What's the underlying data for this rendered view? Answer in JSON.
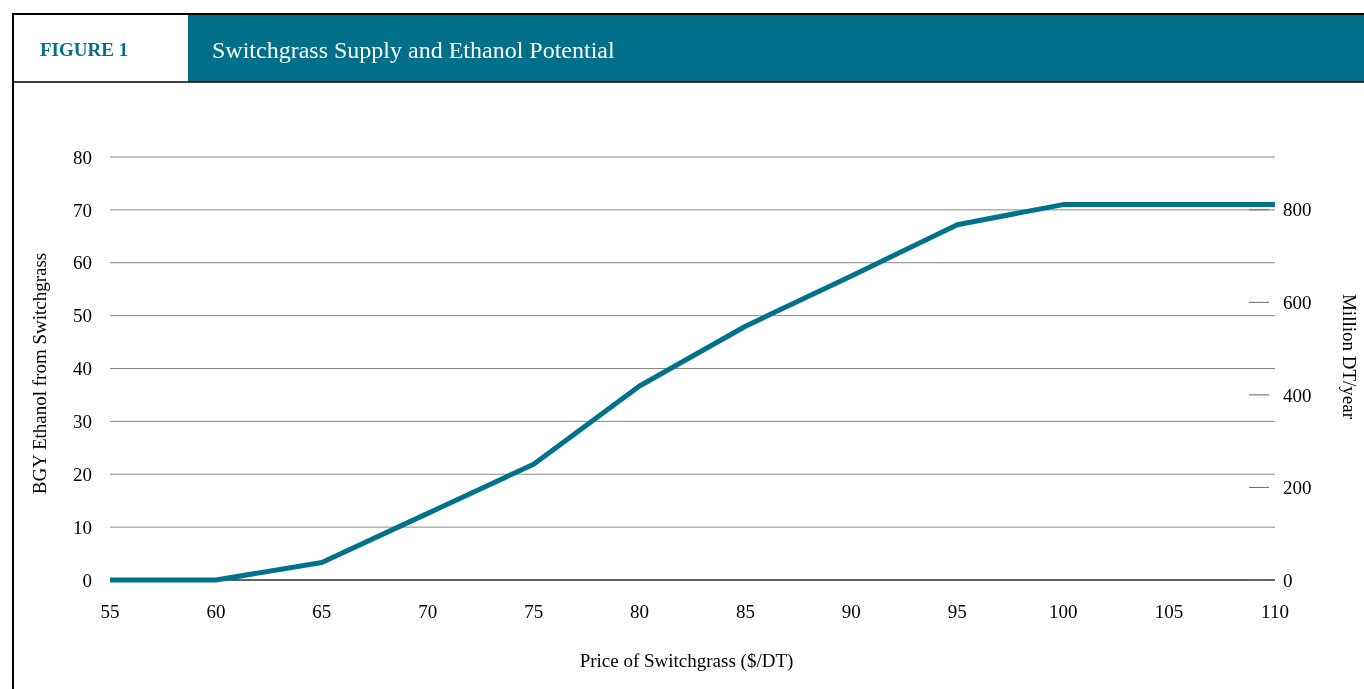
{
  "chart_data": {
    "type": "line",
    "title": "Switchgrass Supply and Ethanol Potential",
    "subtitle": "FIGURE 1",
    "xlabel": "Price of Switchgrass ($/DT)",
    "ylabel": "BGY Ethanol from Switchgrass",
    "y2label": "Million DT/year",
    "x": [
      55,
      60,
      65,
      70,
      75,
      80,
      85,
      90,
      95,
      100,
      105,
      110
    ],
    "series": [
      {
        "color": "#00728c",
        "values": [
          0,
          0,
          3.3,
          12.6,
          21.9,
          36.7,
          48,
          57.5,
          67.2,
          71,
          71,
          71
        ]
      }
    ],
    "xlim": [
      55,
      110
    ],
    "xticks": [
      55,
      60,
      65,
      70,
      75,
      80,
      85,
      90,
      95,
      100,
      105,
      110
    ],
    "ylim": [
      0,
      80
    ],
    "yticks": [
      0,
      10,
      20,
      30,
      40,
      50,
      60,
      70,
      80
    ],
    "y2lim": [
      0,
      914
    ],
    "y2ticks": [
      0,
      200,
      400,
      600,
      800
    ],
    "grid": "y",
    "marker": "none",
    "line_style": "solid"
  }
}
